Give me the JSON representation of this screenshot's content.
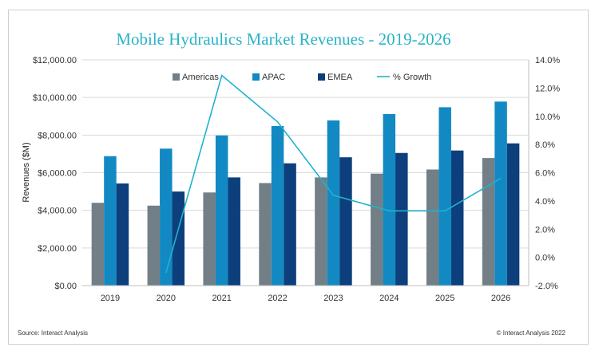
{
  "chart_data": {
    "type": "bar",
    "title": "Mobile Hydraulics Market Revenues - 2019-2026",
    "ylabel": "Revenues ($M)",
    "categories": [
      "2019",
      "2020",
      "2021",
      "2022",
      "2023",
      "2024",
      "2025",
      "2026"
    ],
    "ylim": [
      0,
      12000
    ],
    "y2lim": [
      -2,
      14
    ],
    "y_ticks": [
      "$0.00",
      "$2,000.00",
      "$4,000.00",
      "$6,000.00",
      "$8,000.00",
      "$10,000.00",
      "$12,000.00"
    ],
    "y2_ticks": [
      "-2.0%",
      "0.0%",
      "2.0%",
      "4.0%",
      "6.0%",
      "8.0%",
      "10.0%",
      "12.0%",
      "14.0%"
    ],
    "series": [
      {
        "name": "Americas",
        "type": "bar",
        "color": "#727f86",
        "values": [
          4400,
          4250,
          4950,
          5450,
          5750,
          5950,
          6170,
          6780
        ]
      },
      {
        "name": "APAC",
        "type": "bar",
        "color": "#1289c2",
        "values": [
          6880,
          7280,
          7980,
          8480,
          8780,
          9120,
          9480,
          9780
        ]
      },
      {
        "name": "EMEA",
        "type": "bar",
        "color": "#0c3f7c",
        "values": [
          5430,
          5000,
          5750,
          6500,
          6820,
          7050,
          7180,
          7560
        ]
      },
      {
        "name": "% Growth",
        "type": "line",
        "axis": "right",
        "color": "#1fb3cf",
        "values": [
          null,
          -1.1,
          12.9,
          9.6,
          4.4,
          3.3,
          3.3,
          5.6
        ]
      }
    ],
    "legend": "top",
    "grid": true
  },
  "footer": {
    "source": "Source: Interact Analysis",
    "copyright": "© Interact Analysis 2022"
  }
}
